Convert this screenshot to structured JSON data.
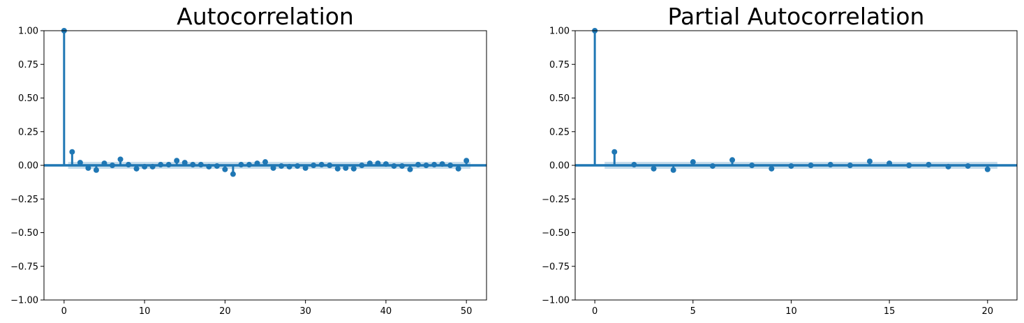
{
  "colors": {
    "series": "#1f77b4",
    "band": "#1f77b4",
    "axis": "#000000",
    "background": "#ffffff"
  },
  "chart_data": [
    {
      "type": "scatter",
      "subtype": "stem",
      "title": "Autocorrelation",
      "xlabel": "",
      "ylabel": "",
      "xlim": [
        -2.5,
        52.5
      ],
      "ylim": [
        -1.0,
        1.0
      ],
      "x_ticks": [
        0,
        10,
        20,
        30,
        40,
        50
      ],
      "x_tick_labels": [
        "0",
        "10",
        "20",
        "30",
        "40",
        "50"
      ],
      "y_ticks": [
        -1.0,
        -0.75,
        -0.5,
        -0.25,
        0.0,
        0.25,
        0.5,
        0.75,
        1.0
      ],
      "y_tick_labels": [
        "−1.00",
        "−0.75",
        "−0.50",
        "−0.25",
        "0.00",
        "0.25",
        "0.50",
        "0.75",
        "1.00"
      ],
      "grid": false,
      "confidence_band": 0.026,
      "x": [
        0,
        1,
        2,
        3,
        4,
        5,
        6,
        7,
        8,
        9,
        10,
        11,
        12,
        13,
        14,
        15,
        16,
        17,
        18,
        19,
        20,
        21,
        22,
        23,
        24,
        25,
        26,
        27,
        28,
        29,
        30,
        31,
        32,
        33,
        34,
        35,
        36,
        37,
        38,
        39,
        40,
        41,
        42,
        43,
        44,
        45,
        46,
        47,
        48,
        49,
        50
      ],
      "values": [
        1.0,
        0.1,
        0.02,
        -0.02,
        -0.035,
        0.015,
        0.0,
        0.045,
        0.005,
        -0.025,
        -0.01,
        -0.01,
        0.005,
        0.005,
        0.035,
        0.02,
        0.005,
        0.005,
        -0.01,
        -0.005,
        -0.03,
        -0.065,
        0.005,
        0.005,
        0.015,
        0.025,
        -0.02,
        -0.005,
        -0.01,
        -0.005,
        -0.02,
        0.0,
        0.005,
        0.0,
        -0.025,
        -0.02,
        -0.025,
        0.0,
        0.015,
        0.015,
        0.01,
        -0.005,
        -0.005,
        -0.03,
        0.005,
        0.0,
        0.005,
        0.01,
        0.0,
        -0.025,
        0.035
      ]
    },
    {
      "type": "scatter",
      "subtype": "stem",
      "title": "Partial Autocorrelation",
      "xlabel": "",
      "ylabel": "",
      "xlim": [
        -1.0,
        21.5
      ],
      "ylim": [
        -1.0,
        1.0
      ],
      "x_ticks": [
        0,
        5,
        10,
        15,
        20
      ],
      "x_tick_labels": [
        "0",
        "5",
        "10",
        "15",
        "20"
      ],
      "y_ticks": [
        -1.0,
        -0.75,
        -0.5,
        -0.25,
        0.0,
        0.25,
        0.5,
        0.75,
        1.0
      ],
      "y_tick_labels": [
        "−1.00",
        "−0.75",
        "−0.50",
        "−0.25",
        "0.00",
        "0.25",
        "0.50",
        "0.75",
        "1.00"
      ],
      "grid": false,
      "confidence_band": 0.026,
      "x": [
        0,
        1,
        2,
        3,
        4,
        5,
        6,
        7,
        8,
        9,
        10,
        11,
        12,
        13,
        14,
        15,
        16,
        17,
        18,
        19,
        20
      ],
      "values": [
        1.0,
        0.1,
        0.005,
        -0.025,
        -0.035,
        0.025,
        -0.005,
        0.04,
        0.0,
        -0.025,
        -0.005,
        0.0,
        0.005,
        0.0,
        0.03,
        0.015,
        0.0,
        0.005,
        -0.01,
        -0.005,
        -0.03
      ]
    }
  ]
}
